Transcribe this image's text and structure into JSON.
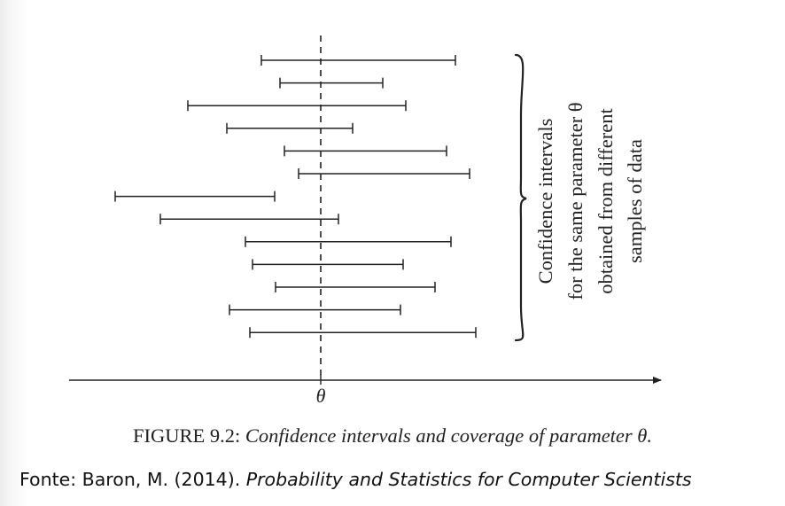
{
  "diagram": {
    "axis_label": "θ",
    "intervals": [
      {
        "low": -67,
        "high": 152
      },
      {
        "low": -46,
        "high": 70
      },
      {
        "low": -150,
        "high": 96
      },
      {
        "low": -106,
        "high": 36
      },
      {
        "low": -41,
        "high": 142
      },
      {
        "low": -25,
        "high": 168
      },
      {
        "low": -232,
        "high": -52
      },
      {
        "low": -181,
        "high": 20
      },
      {
        "low": -85,
        "high": 147
      },
      {
        "low": -77,
        "high": 93
      },
      {
        "low": -51,
        "high": 129
      },
      {
        "low": -103,
        "high": 90
      },
      {
        "low": -80,
        "high": 175
      }
    ],
    "brace_label_lines": [
      "Confidence intervals",
      "for the same parameter θ",
      "obtained from different",
      "samples of data"
    ]
  },
  "caption": {
    "prefix": "FIGURE 9.2: ",
    "text": "Confidence intervals and coverage of parameter θ."
  },
  "source": {
    "prefix": "Fonte: Baron, M. (2014). ",
    "title": "Probability and Statistics for Computer Scientists"
  }
}
